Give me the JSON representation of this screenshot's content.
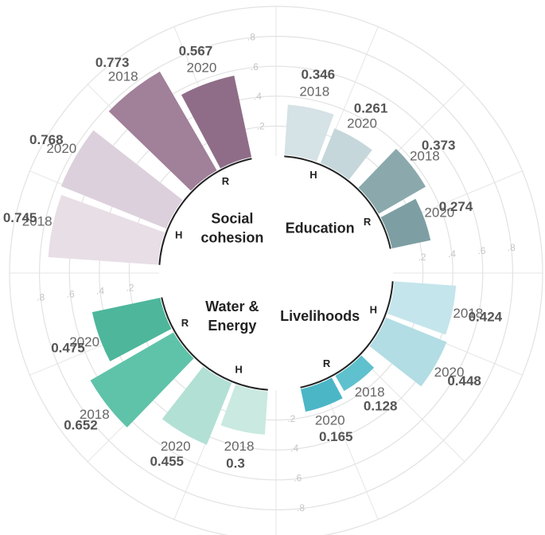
{
  "chart_data": {
    "type": "radial_bar",
    "ylim": [
      0,
      1
    ],
    "yticks": [
      {
        "value": 0.2,
        "label": ".2"
      },
      {
        "value": 0.4,
        "label": ".4"
      },
      {
        "value": 0.6,
        "label": ".6"
      },
      {
        "value": 0.8,
        "label": ".8"
      }
    ],
    "grid": true,
    "groups": [
      {
        "name": [
          "Education"
        ],
        "bars": [
          {
            "subgroup": "H",
            "year": "2018",
            "value": 0.346,
            "color": "#d5e2e6"
          },
          {
            "subgroup": "H",
            "year": "2020",
            "value": 0.261,
            "color": "#c6d7db"
          },
          {
            "subgroup": "R",
            "year": "2018",
            "value": 0.373,
            "color": "#8ba9ad"
          },
          {
            "subgroup": "R",
            "year": "2020",
            "value": 0.274,
            "color": "#7d9fa3"
          }
        ]
      },
      {
        "name": [
          "Livelihoods"
        ],
        "bars": [
          {
            "subgroup": "H",
            "year": "2018",
            "value": 0.424,
            "color": "#c4e5eb"
          },
          {
            "subgroup": "H",
            "year": "2020",
            "value": 0.448,
            "color": "#b2dde4"
          },
          {
            "subgroup": "R",
            "year": "2018",
            "value": 0.128,
            "color": "#5fc1cd"
          },
          {
            "subgroup": "R",
            "year": "2020",
            "value": 0.165,
            "color": "#4bb6c6"
          }
        ]
      },
      {
        "name": [
          "Water &",
          "Energy"
        ],
        "bars": [
          {
            "subgroup": "H",
            "year": "2018",
            "value": 0.3,
            "color": "#c9e9e1"
          },
          {
            "subgroup": "H",
            "year": "2020",
            "value": 0.455,
            "color": "#b2e0d4"
          },
          {
            "subgroup": "R",
            "year": "2018",
            "value": 0.652,
            "color": "#5fc3a9"
          },
          {
            "subgroup": "R",
            "year": "2020",
            "value": 0.475,
            "color": "#4db69b"
          }
        ]
      },
      {
        "name": [
          "Social",
          "cohesion"
        ],
        "bars": [
          {
            "subgroup": "H",
            "year": "2018",
            "value": 0.745,
            "color": "#e8dee6"
          },
          {
            "subgroup": "H",
            "year": "2020",
            "value": 0.768,
            "color": "#dcd0dc"
          },
          {
            "subgroup": "R",
            "year": "2018",
            "value": 0.773,
            "color": "#a18099"
          },
          {
            "subgroup": "R",
            "year": "2020",
            "value": 0.567,
            "color": "#8f6d88"
          }
        ]
      }
    ]
  }
}
